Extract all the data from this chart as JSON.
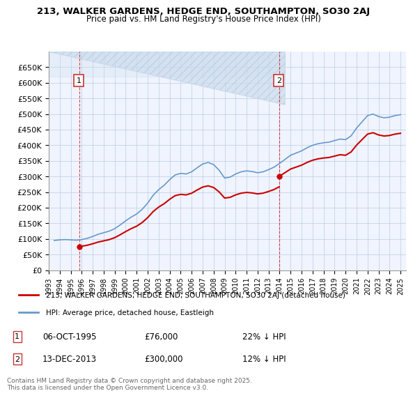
{
  "title": "213, WALKER GARDENS, HEDGE END, SOUTHAMPTON, SO30 2AJ",
  "subtitle": "Price paid vs. HM Land Registry's House Price Index (HPI)",
  "ylabel": "",
  "ylim": [
    0,
    700000
  ],
  "yticks": [
    0,
    50000,
    100000,
    150000,
    200000,
    250000,
    300000,
    350000,
    400000,
    450000,
    500000,
    550000,
    600000,
    650000
  ],
  "ytick_labels": [
    "£0",
    "£50K",
    "£100K",
    "£150K",
    "£200K",
    "£250K",
    "£300K",
    "£350K",
    "£400K",
    "£450K",
    "£500K",
    "£550K",
    "£600K",
    "£650K"
  ],
  "xlim_start": 1993.0,
  "xlim_end": 2025.5,
  "purchase1": {
    "year": 1995.77,
    "price": 76000,
    "label": "1",
    "date": "06-OCT-1995",
    "amount": "£76,000",
    "note": "22% ↓ HPI"
  },
  "purchase2": {
    "year": 2013.95,
    "price": 300000,
    "label": "2",
    "date": "13-DEC-2013",
    "amount": "£300,000",
    "note": "12% ↓ HPI"
  },
  "legend_line1": "213, WALKER GARDENS, HEDGE END, SOUTHAMPTON, SO30 2AJ (detached house)",
  "legend_line2": "HPI: Average price, detached house, Eastleigh",
  "footer": "Contains HM Land Registry data © Crown copyright and database right 2025.\nThis data is licensed under the Open Government Licence v3.0.",
  "line_color_red": "#cc0000",
  "line_color_blue": "#6699cc",
  "hatch_color": "#ccddee",
  "bg_color": "#ddeeff",
  "plot_bg": "#f0f4ff",
  "grid_color": "#bbccdd"
}
